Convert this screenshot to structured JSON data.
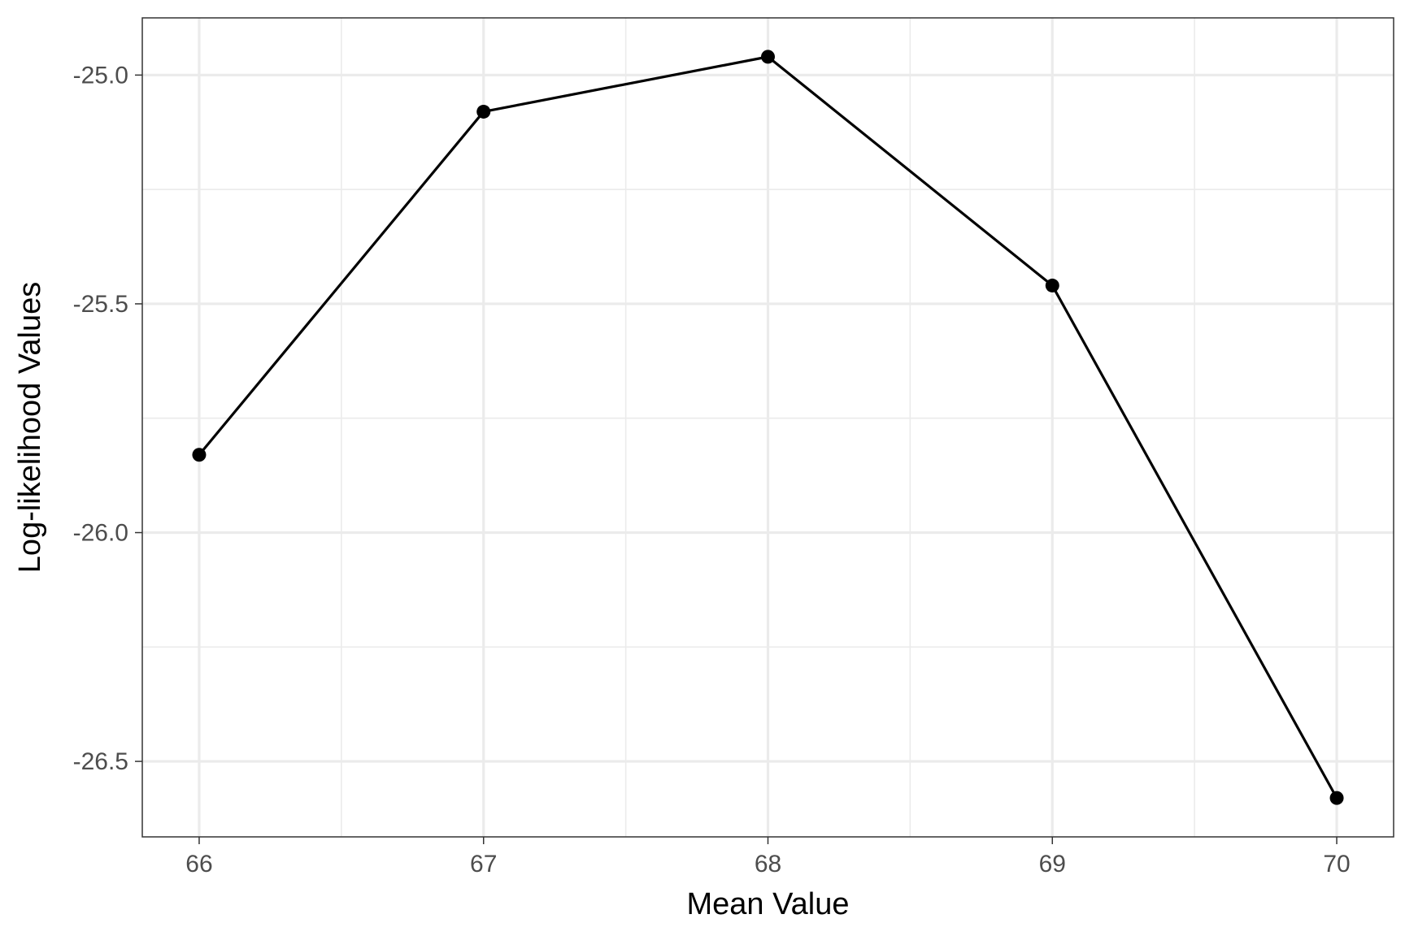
{
  "chart_data": {
    "type": "line",
    "title": "",
    "xlabel": "Mean Value",
    "ylabel": "Log-likelihood Values",
    "x": [
      66,
      67,
      68,
      69,
      70
    ],
    "series": [
      {
        "values": [
          -25.83,
          -25.08,
          -24.96,
          -25.46,
          -26.58
        ],
        "color": "#000000",
        "markers": true
      }
    ],
    "xlim": [
      65.8,
      70.2
    ],
    "ylim": [
      -26.665,
      -24.875
    ],
    "x_ticks": [
      66,
      67,
      68,
      69,
      70
    ],
    "x_tick_labels": [
      "66",
      "67",
      "68",
      "69",
      "70"
    ],
    "y_ticks": [
      -25.0,
      -25.5,
      -26.0,
      -26.5
    ],
    "y_tick_labels": [
      "-25.0",
      "-25.5",
      "-26.0",
      "-26.5"
    ],
    "x_minor_ticks": [
      66.5,
      67.5,
      68.5,
      69.5
    ],
    "y_minor_ticks": [
      -25.25,
      -25.75,
      -26.25
    ],
    "grid": true,
    "legend": "none",
    "colors": {
      "background": "#ffffff",
      "grid": "#ebebeb",
      "panel_border": "#333333",
      "tick_label": "#4d4d4d",
      "line": "#000000"
    }
  }
}
